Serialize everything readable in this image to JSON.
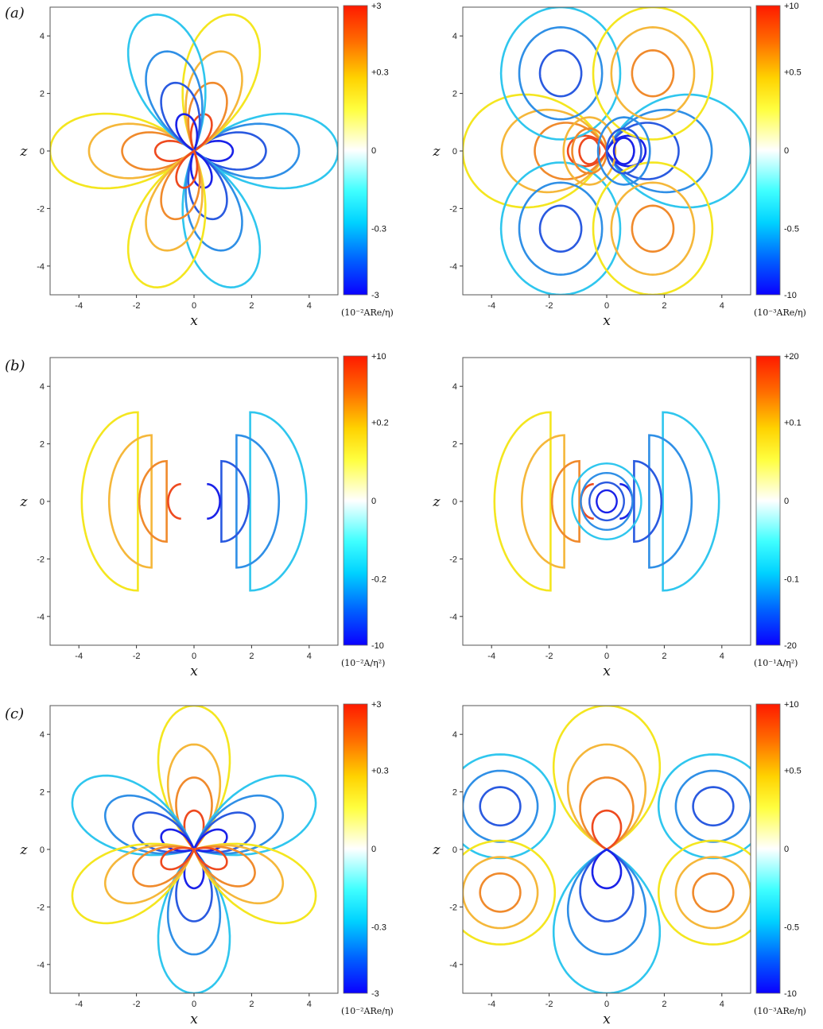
{
  "panel_labels": [
    "(a)",
    "(b)",
    "(c)"
  ],
  "chart_data": [
    {
      "id": "a-left",
      "type": "contour",
      "row": 0,
      "col": 0,
      "pattern": "quad",
      "xlabel": "x",
      "ylabel": "z",
      "xlim": [
        -5,
        5
      ],
      "ylim": [
        -5,
        5
      ],
      "xticks": [
        -4,
        -2,
        0,
        2,
        4
      ],
      "yticks": [
        -4,
        -2,
        0,
        2,
        4
      ],
      "colorbar": {
        "labels": [
          "+3",
          "+0.3",
          "0",
          "-0.3",
          "-3"
        ],
        "unit": "(10⁻²ARe/η)"
      }
    },
    {
      "id": "a-right",
      "type": "contour",
      "row": 0,
      "col": 1,
      "pattern": "quadComplex",
      "xlabel": "x",
      "ylabel": "z",
      "xlim": [
        -5,
        5
      ],
      "ylim": [
        -5,
        5
      ],
      "xticks": [
        -4,
        -2,
        0,
        2,
        4
      ],
      "yticks": [
        -4,
        -2,
        0,
        2,
        4
      ],
      "colorbar": {
        "labels": [
          "+10",
          "+0.5",
          "0",
          "-0.5",
          "-10"
        ],
        "unit": "(10⁻³ARe/η)"
      }
    },
    {
      "id": "b-left",
      "type": "contour",
      "row": 1,
      "col": 0,
      "pattern": "dipole",
      "xlabel": "x",
      "ylabel": "z",
      "xlim": [
        -5,
        5
      ],
      "ylim": [
        -5,
        5
      ],
      "xticks": [
        -4,
        -2,
        0,
        2,
        4
      ],
      "yticks": [
        -4,
        -2,
        0,
        2,
        4
      ],
      "colorbar": {
        "labels": [
          "+10",
          "+0.2",
          "0",
          "-0.2",
          "-10"
        ],
        "unit": "(10⁻²A/η²)"
      }
    },
    {
      "id": "b-right",
      "type": "contour",
      "row": 1,
      "col": 1,
      "pattern": "dipoleComplex",
      "xlabel": "x",
      "ylabel": "z",
      "xlim": [
        -5,
        5
      ],
      "ylim": [
        -5,
        5
      ],
      "xticks": [
        -4,
        -2,
        0,
        2,
        4
      ],
      "yticks": [
        -4,
        -2,
        0,
        2,
        4
      ],
      "colorbar": {
        "labels": [
          "+20",
          "+0.1",
          "0",
          "-0.1",
          "-20"
        ],
        "unit": "(10⁻¹A/η²)"
      }
    },
    {
      "id": "c-left",
      "type": "contour",
      "row": 2,
      "col": 0,
      "pattern": "hex",
      "xlabel": "x",
      "ylabel": "z",
      "xlim": [
        -5,
        5
      ],
      "ylim": [
        -5,
        5
      ],
      "xticks": [
        -4,
        -2,
        0,
        2,
        4
      ],
      "yticks": [
        -4,
        -2,
        0,
        2,
        4
      ],
      "colorbar": {
        "labels": [
          "+3",
          "+0.3",
          "0",
          "-0.3",
          "-3"
        ],
        "unit": "(10⁻²ARe/η)"
      }
    },
    {
      "id": "c-right",
      "type": "contour",
      "row": 2,
      "col": 1,
      "pattern": "hexComplex",
      "xlabel": "x",
      "ylabel": "z",
      "xlim": [
        -5,
        5
      ],
      "ylim": [
        -5,
        5
      ],
      "xticks": [
        -4,
        -2,
        0,
        2,
        4
      ],
      "yticks": [
        -4,
        -2,
        0,
        2,
        4
      ],
      "colorbar": {
        "labels": [
          "+10",
          "+0.5",
          "0",
          "-0.5",
          "-10"
        ],
        "unit": "(10⁻³ARe/η)"
      }
    }
  ],
  "colors": {
    "c_yellow": "#f4e61f",
    "c_lorange": "#f5b73a",
    "c_orange": "#f08a2c",
    "c_red": "#ee4a1f",
    "c_cyan": "#2fc6ee",
    "c_lblue": "#2f8fe6",
    "c_blue": "#2a5ae0",
    "c_dblue": "#1a22e8",
    "c_cyan2": "#25d8e8",
    "c_yellow2": "#e8e23a"
  }
}
